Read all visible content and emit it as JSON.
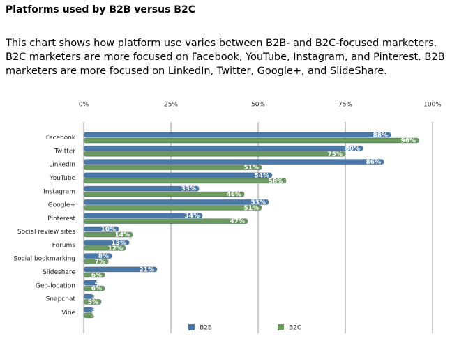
{
  "chart_data": {
    "type": "bar",
    "orientation": "horizontal",
    "title": "Platforms used by B2B versus B2C",
    "subtitle": "This chart shows how platform use varies between B2B- and B2C-focused marketers. B2C marketers are more focused on Facebook, YouTube, Instagram, and Pinterest. B2B marketers are more focused on LinkedIn, Twitter, Google+, and SlideShare.",
    "categories": [
      "Facebook",
      "Twitter",
      "LinkedIn",
      "YouTube",
      "Instagram",
      "Google+",
      "Pinterest",
      "Social review sites",
      "Forums",
      "Social bookmarking",
      "Slideshare",
      "Geo-location",
      "Snapchat",
      "Vine"
    ],
    "series": [
      {
        "name": "B2B",
        "color": "#4a78a8",
        "values": [
          88,
          80,
          86,
          54,
          33,
          53,
          34,
          10,
          13,
          8,
          21,
          4,
          3,
          3
        ],
        "value_labels": [
          "88%",
          "80%",
          "86%",
          "54%",
          "33%",
          "53%",
          "34%",
          "10%",
          "13%",
          "8%",
          "21%",
          "4%",
          "3%",
          "3%"
        ]
      },
      {
        "name": "B2C",
        "color": "#6d9a5e",
        "values": [
          96,
          75,
          51,
          58,
          46,
          51,
          47,
          14,
          12,
          7,
          6,
          6,
          5,
          3
        ],
        "value_labels": [
          "96%",
          "75%",
          "51%",
          "58%",
          "46%",
          "51%",
          "47%",
          "14%",
          "12%",
          "7%",
          "6%",
          "6%",
          "5%",
          "3%"
        ]
      }
    ],
    "xlim": [
      0,
      100
    ],
    "xticks": [
      {
        "value": 0,
        "label": "0%"
      },
      {
        "value": 25,
        "label": "25%"
      },
      {
        "value": 50,
        "label": "50%"
      },
      {
        "value": 75,
        "label": "75%"
      },
      {
        "value": 100,
        "label": "100%"
      }
    ],
    "grid": true,
    "legend": "bottom"
  }
}
